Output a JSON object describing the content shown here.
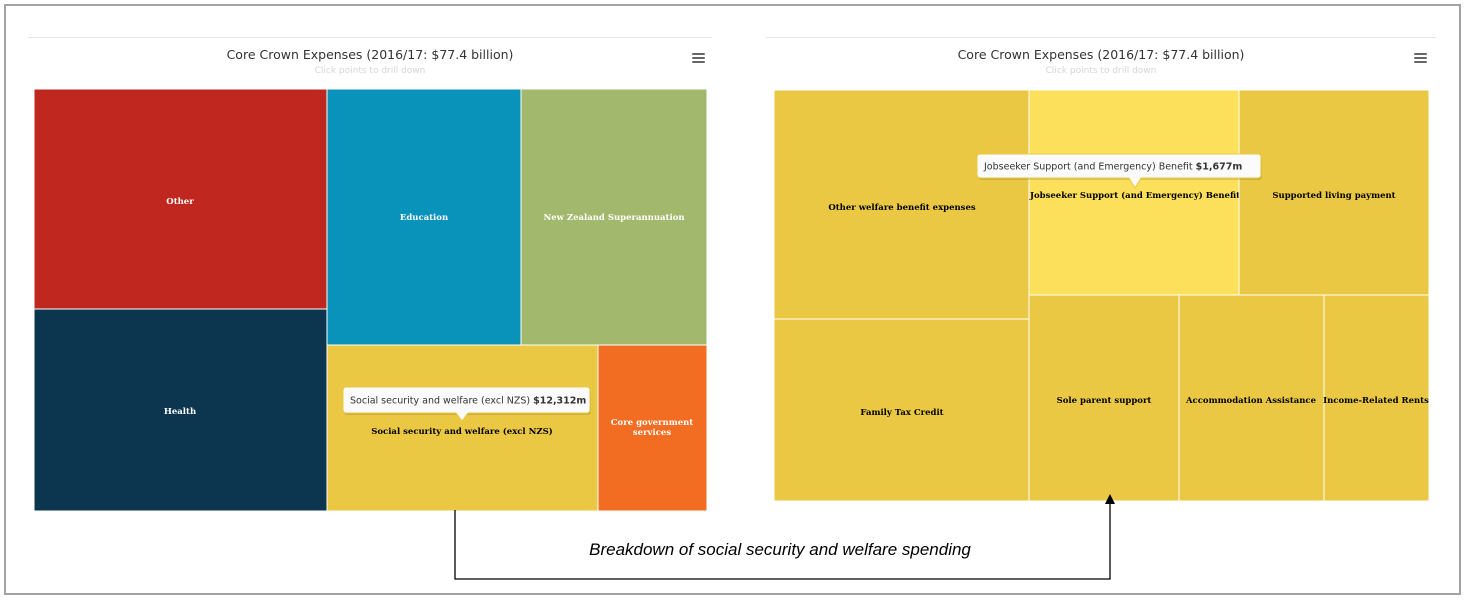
{
  "chart_data": [
    {
      "type": "treemap",
      "title": "Core Crown Expenses (2016/17: $77.4 billion)",
      "subtitle": "Click points to drill down",
      "items": [
        {
          "name": "Other",
          "color": "#c0281f",
          "label_color": "#ffffff"
        },
        {
          "name": "Health",
          "color": "#0c3650",
          "label_color": "#ffffff"
        },
        {
          "name": "Education",
          "color": "#0a93ba",
          "label_color": "#ffffff"
        },
        {
          "name": "New Zealand Superannuation",
          "color": "#a2b86d",
          "label_color": "#ffffff"
        },
        {
          "name": "Social security and welfare (excl NZS)",
          "color": "#eac843",
          "label_color": "#000000",
          "value": 12312
        },
        {
          "name": "Core government services",
          "label_lines": [
            "Core government",
            "services"
          ],
          "color": "#f26d21",
          "label_color": "#ffffff"
        }
      ],
      "tooltip": {
        "label": "Social security and welfare (excl NZS)",
        "value": "$12,312m",
        "target": "Social security and welfare (excl NZS)"
      }
    },
    {
      "type": "treemap",
      "title": "Core Crown Expenses (2016/17: $77.4 billion)",
      "subtitle": "Click points to drill down",
      "items": [
        {
          "name": "Other welfare benefit expenses",
          "color": "#eac843",
          "label_color": "#000000"
        },
        {
          "name": "Jobseeker Support (and Emergency) Benefit",
          "color": "#fcdf5b",
          "label_color": "#000000",
          "value": 1677
        },
        {
          "name": "Supported living payment",
          "color": "#eac843",
          "label_color": "#000000"
        },
        {
          "name": "Family Tax Credit",
          "color": "#eac843",
          "label_color": "#000000"
        },
        {
          "name": "Sole parent support",
          "color": "#eac843",
          "label_color": "#000000"
        },
        {
          "name": "Accommodation Assistance",
          "color": "#eac843",
          "label_color": "#000000"
        },
        {
          "name": "Income-Related Rents",
          "color": "#eac843",
          "label_color": "#000000"
        }
      ],
      "tooltip": {
        "label": "Jobseeker Support (and Emergency) Benefit",
        "value": "$1,677m",
        "target": "Jobseeker Support (and Emergency) Benefit"
      }
    }
  ],
  "caption": "Breakdown of social security and welfare spending",
  "menu_icon": "hamburger-menu-icon"
}
